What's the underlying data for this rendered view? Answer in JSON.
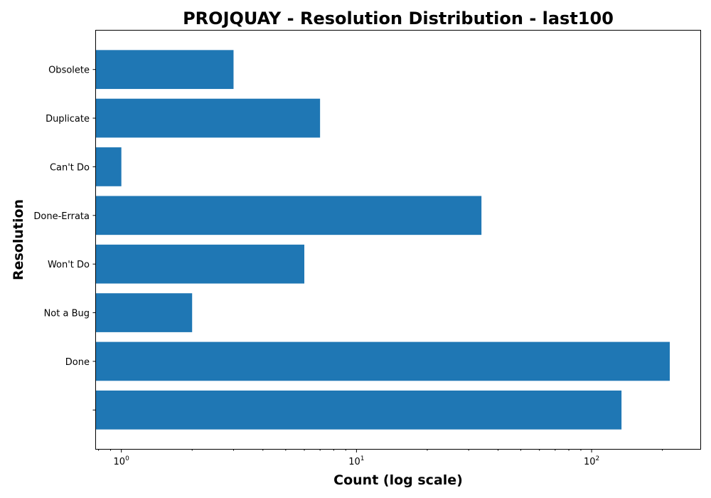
{
  "chart_data": {
    "type": "bar",
    "orientation": "horizontal",
    "title": "PROJQUAY - Resolution Distribution - last100",
    "xlabel": "Count (log scale)",
    "ylabel": "Resolution",
    "xscale": "log",
    "xlim": [
      0.78,
      290
    ],
    "grid": false,
    "bar_color": "#1f77b4",
    "categories": [
      "",
      "Done",
      "Not a Bug",
      "Won't Do",
      "Done-Errata",
      "Can't Do",
      "Duplicate",
      "Obsolete"
    ],
    "values": [
      134,
      215,
      2,
      6,
      34,
      1,
      7,
      3
    ],
    "x_ticks": [
      {
        "value": 1,
        "base": "10",
        "exp": "0"
      },
      {
        "value": 10,
        "base": "10",
        "exp": "1"
      },
      {
        "value": 100,
        "base": "10",
        "exp": "2"
      }
    ]
  }
}
